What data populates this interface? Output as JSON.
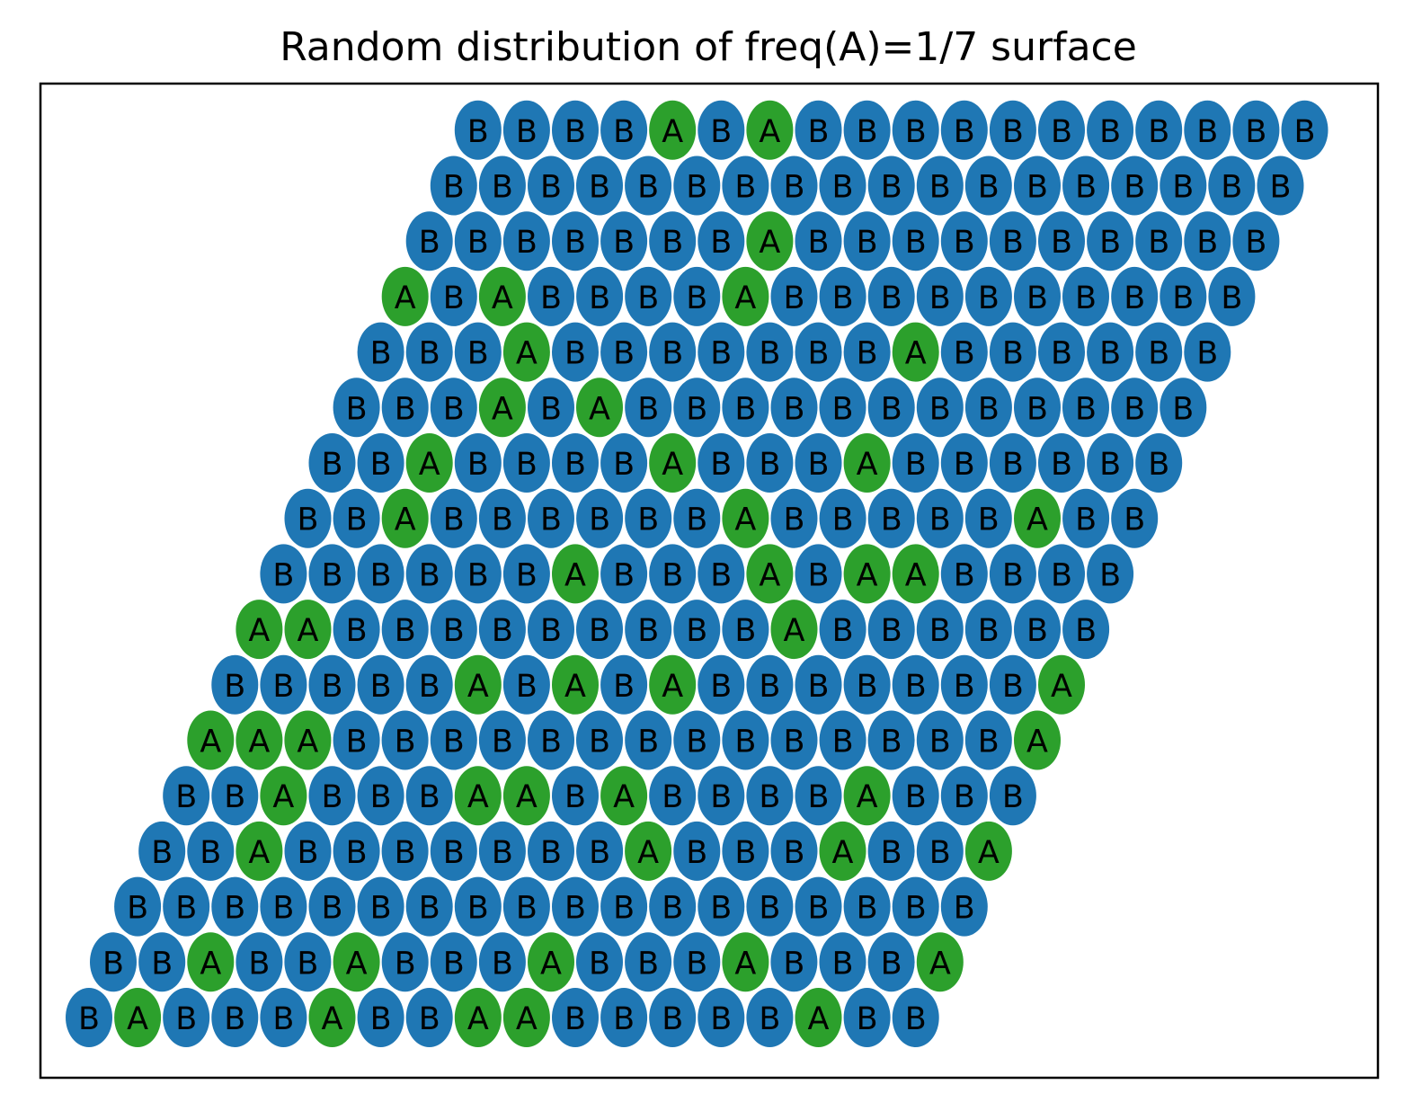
{
  "chart_data": {
    "type": "scatter",
    "title": "Random distribution of freq(A)=1/7 surface",
    "xlabel": "",
    "ylabel": "",
    "grid": false,
    "lattice": "triangular-parallelogram",
    "colors": {
      "A": "#2ca02c",
      "B": "#1f77b4"
    },
    "rows_top_to_bottom": [
      "BBBBABABBBBBBBBBBB",
      "BBBBBBBBBBBBBBBBBB",
      "BBBBBBBABBBBBBBBBB",
      "ABABBBBABBBBBBBBBB",
      "BBBABBBBBBBABBBBBB",
      "BBBABABBBBBBBBBBBB",
      "BBABBBBABBBABBBBBB",
      "BBABBBBBBABBBBBABB",
      "BBBBBBABBBABAABBBB",
      "AABBBBBBBBBABBBBBB",
      "BBBBBABABABBBBBBBA",
      "AAABBBBBBBBBBBBBBA",
      "BBABBBAABABBBBABBB",
      "BBABBBBBBBABBBABBA",
      "BBBBBBBBBBBBBBBBBB",
      "BBABBABBBABBBABBBA",
      "BABBBABBAABBBBBABB"
    ]
  }
}
